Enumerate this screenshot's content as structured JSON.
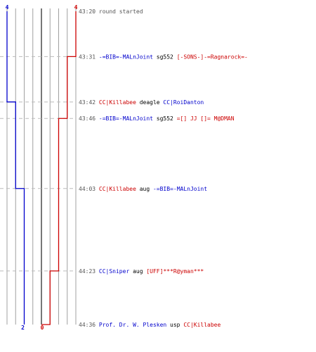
{
  "colors": {
    "team_a": "#0000cc",
    "team_b": "#cc0000",
    "neutral": "#000000",
    "time": "#555555",
    "grid": "#a0a0a0",
    "center": "#555555",
    "dash": "#bbbbbb"
  },
  "chart_data": {
    "type": "line",
    "title": "",
    "xlabel": "",
    "ylabel": "",
    "x_lanes": [
      0,
      1,
      2,
      3,
      4
    ],
    "team_a": {
      "start_label": "4",
      "end_label": "2",
      "steps": [
        {
          "time": "43:20",
          "alive": 4
        },
        {
          "time": "43:42",
          "alive": 3
        },
        {
          "time": "44:03",
          "alive": 2
        },
        {
          "time": "44:36",
          "alive": 2
        }
      ]
    },
    "team_b": {
      "start_label": "4",
      "end_label": "0",
      "steps": [
        {
          "time": "43:20",
          "alive": 4
        },
        {
          "time": "43:31",
          "alive": 3
        },
        {
          "time": "43:46",
          "alive": 2
        },
        {
          "time": "44:23",
          "alive": 1
        },
        {
          "time": "44:36",
          "alive": 0
        }
      ]
    },
    "events": [
      {
        "time": "43:20",
        "parts": [
          {
            "text": "round started",
            "c": "time"
          }
        ]
      },
      {
        "time": "43:31",
        "parts": [
          {
            "text": "-=BIB=-MALnJoint",
            "c": "team_a"
          },
          {
            "text": " sg552 ",
            "c": "neutral"
          },
          {
            "text": "[-SONS-]-=Ragnarock=-",
            "c": "team_b"
          }
        ]
      },
      {
        "time": "43:42",
        "parts": [
          {
            "text": "CC|Killabee",
            "c": "team_b"
          },
          {
            "text": " deagle ",
            "c": "neutral"
          },
          {
            "text": "CC|RoiDanton",
            "c": "team_a"
          }
        ]
      },
      {
        "time": "43:46",
        "parts": [
          {
            "text": "-=BIB=-MALnJoint",
            "c": "team_a"
          },
          {
            "text": " sg552 ",
            "c": "neutral"
          },
          {
            "text": "=[] JJ []= M@DMAN",
            "c": "team_b"
          }
        ]
      },
      {
        "time": "44:03",
        "parts": [
          {
            "text": "CC|Killabee",
            "c": "team_b"
          },
          {
            "text": " aug ",
            "c": "neutral"
          },
          {
            "text": "-=BIB=-MALnJoint",
            "c": "team_a"
          }
        ]
      },
      {
        "time": "44:23",
        "parts": [
          {
            "text": "CC|Sniper",
            "c": "team_a"
          },
          {
            "text": " aug ",
            "c": "neutral"
          },
          {
            "text": "[UFF]***R@yman***",
            "c": "team_b"
          }
        ]
      },
      {
        "time": "44:36",
        "parts": [
          {
            "text": "Prof. Dr. W. Plesken",
            "c": "team_a"
          },
          {
            "text": " usp ",
            "c": "neutral"
          },
          {
            "text": "CC|Killabee",
            "c": "team_b"
          }
        ]
      }
    ]
  }
}
